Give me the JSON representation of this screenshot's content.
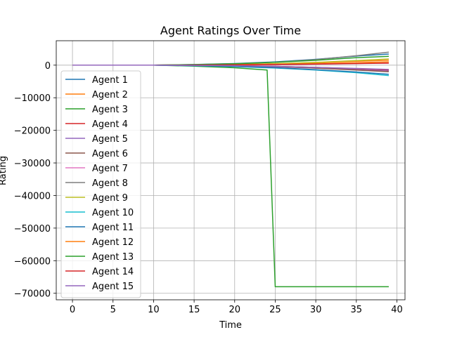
{
  "chart_data": {
    "type": "line",
    "title": "Agent Ratings Over Time",
    "xlabel": "Time",
    "ylabel": "Rating",
    "xlim": [
      -2,
      41
    ],
    "ylim": [
      -72000,
      7500
    ],
    "xticks": [
      0,
      5,
      10,
      15,
      20,
      25,
      30,
      35,
      40
    ],
    "yticks": [
      0,
      -10000,
      -20000,
      -30000,
      -40000,
      -50000,
      -60000,
      -70000
    ],
    "xtick_labels": [
      "0",
      "5",
      "10",
      "15",
      "20",
      "25",
      "30",
      "35",
      "40"
    ],
    "ytick_labels": [
      "0",
      "−10000",
      "−20000",
      "−30000",
      "−40000",
      "−50000",
      "−60000",
      "−70000"
    ],
    "grid": true,
    "legend_position": "upper-left",
    "x": [
      0,
      10,
      15,
      20,
      24,
      25,
      30,
      35,
      39
    ],
    "series": [
      {
        "name": "Agent 1",
        "color": "#1f77b4",
        "values": [
          0,
          0,
          200,
          500,
          900,
          1000,
          1800,
          2800,
          3400
        ]
      },
      {
        "name": "Agent 2",
        "color": "#ff7f0e",
        "values": [
          0,
          0,
          100,
          250,
          400,
          450,
          800,
          1200,
          1500
        ]
      },
      {
        "name": "Agent 3",
        "color": "#2ca02c",
        "values": [
          0,
          0,
          -300,
          -800,
          -1500,
          -68000,
          -68000,
          -68000,
          -68000
        ]
      },
      {
        "name": "Agent 4",
        "color": "#d62728",
        "values": [
          0,
          0,
          -50,
          -150,
          -300,
          -350,
          -700,
          -1100,
          -1500
        ]
      },
      {
        "name": "Agent 5",
        "color": "#9467bd",
        "values": [
          0,
          0,
          -100,
          -250,
          -450,
          -500,
          -900,
          -1400,
          -1800
        ]
      },
      {
        "name": "Agent 6",
        "color": "#8c564b",
        "values": [
          0,
          0,
          -80,
          -200,
          -380,
          -420,
          -900,
          -1500,
          -2000
        ]
      },
      {
        "name": "Agent 7",
        "color": "#e377c2",
        "values": [
          0,
          0,
          30,
          80,
          150,
          170,
          300,
          500,
          700
        ]
      },
      {
        "name": "Agent 8",
        "color": "#7f7f7f",
        "values": [
          0,
          0,
          150,
          400,
          800,
          900,
          1700,
          2900,
          4000
        ]
      },
      {
        "name": "Agent 9",
        "color": "#bcbd22",
        "values": [
          0,
          0,
          80,
          200,
          400,
          450,
          850,
          1400,
          1900
        ]
      },
      {
        "name": "Agent 10",
        "color": "#17becf",
        "values": [
          0,
          0,
          -180,
          -450,
          -800,
          -880,
          -1500,
          -2300,
          -3200
        ]
      },
      {
        "name": "Agent 11",
        "color": "#1f77b4",
        "values": [
          0,
          0,
          -150,
          -400,
          -700,
          -780,
          -1400,
          -2100,
          -2800
        ]
      },
      {
        "name": "Agent 12",
        "color": "#ff7f0e",
        "values": [
          0,
          0,
          60,
          150,
          250,
          280,
          500,
          750,
          1000
        ]
      },
      {
        "name": "Agent 13",
        "color": "#2ca02c",
        "values": [
          0,
          0,
          180,
          450,
          800,
          880,
          1500,
          2300,
          2700
        ]
      },
      {
        "name": "Agent 14",
        "color": "#d62728",
        "values": [
          0,
          0,
          40,
          100,
          180,
          200,
          350,
          500,
          600
        ]
      },
      {
        "name": "Agent 15",
        "color": "#9467bd",
        "values": [
          0,
          0,
          -70,
          -180,
          -330,
          -370,
          -700,
          -1000,
          -1300
        ]
      }
    ]
  }
}
